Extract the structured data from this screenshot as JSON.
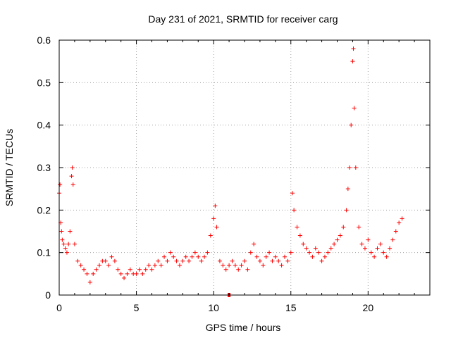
{
  "chart_data": {
    "type": "scatter",
    "title": "Day 231 of 2021, SRMTID for receiver carg",
    "xlabel": "GPS time / hours",
    "ylabel": "SRMTID / TECUs",
    "xlim": [
      0,
      24
    ],
    "ylim": [
      0,
      0.6
    ],
    "x_ticks": [
      0,
      5,
      10,
      15,
      20
    ],
    "x_tick_labels": [
      "0",
      "5",
      "10",
      "15",
      "20"
    ],
    "y_ticks": [
      0,
      0.1,
      0.2,
      0.3,
      0.4,
      0.5,
      0.6
    ],
    "y_tick_labels": [
      "0",
      "0.1",
      "0.2",
      "0.3",
      "0.4",
      "0.5",
      "0.6"
    ],
    "grid": true,
    "marker": "+",
    "color": "#ff0000",
    "series": [
      {
        "name": "SRMTID",
        "x": [
          0.0,
          0.05,
          0.1,
          0.15,
          0.2,
          0.3,
          0.4,
          0.5,
          0.6,
          0.7,
          0.8,
          0.85,
          0.9,
          1.0,
          1.2,
          1.4,
          1.6,
          1.8,
          2.0,
          2.2,
          2.4,
          2.6,
          2.8,
          3.0,
          3.2,
          3.4,
          3.6,
          3.8,
          4.0,
          4.2,
          4.4,
          4.6,
          4.8,
          5.0,
          5.2,
          5.4,
          5.6,
          5.8,
          6.0,
          6.2,
          6.4,
          6.6,
          6.8,
          7.0,
          7.2,
          7.4,
          7.6,
          7.8,
          8.0,
          8.2,
          8.4,
          8.6,
          8.8,
          9.0,
          9.2,
          9.4,
          9.6,
          9.8,
          10.0,
          10.1,
          10.2,
          10.4,
          10.6,
          10.8,
          11.0,
          11.2,
          11.4,
          11.6,
          11.8,
          12.0,
          12.2,
          12.4,
          12.6,
          12.8,
          13.0,
          13.2,
          13.4,
          13.6,
          13.8,
          14.0,
          14.2,
          14.4,
          14.6,
          14.8,
          15.0,
          15.1,
          15.2,
          15.4,
          15.6,
          15.8,
          16.0,
          16.2,
          16.4,
          16.6,
          16.8,
          17.0,
          17.2,
          17.4,
          17.6,
          17.8,
          18.0,
          18.2,
          18.4,
          18.6,
          18.7,
          18.8,
          18.9,
          19.0,
          19.05,
          19.1,
          19.2,
          19.4,
          19.6,
          19.8,
          20.0,
          20.2,
          20.4,
          20.6,
          20.8,
          21.0,
          21.2,
          21.4,
          21.6,
          21.8,
          22.0,
          22.2
        ],
        "y": [
          0.24,
          0.26,
          0.17,
          0.15,
          0.13,
          0.12,
          0.11,
          0.1,
          0.12,
          0.15,
          0.28,
          0.3,
          0.26,
          0.12,
          0.08,
          0.07,
          0.06,
          0.05,
          0.03,
          0.05,
          0.06,
          0.07,
          0.08,
          0.08,
          0.07,
          0.09,
          0.08,
          0.06,
          0.05,
          0.04,
          0.05,
          0.06,
          0.05,
          0.05,
          0.06,
          0.05,
          0.06,
          0.07,
          0.06,
          0.07,
          0.08,
          0.07,
          0.09,
          0.08,
          0.1,
          0.09,
          0.08,
          0.07,
          0.08,
          0.09,
          0.08,
          0.09,
          0.1,
          0.09,
          0.08,
          0.09,
          0.1,
          0.14,
          0.18,
          0.21,
          0.16,
          0.08,
          0.07,
          0.06,
          0.07,
          0.08,
          0.07,
          0.06,
          0.07,
          0.08,
          0.06,
          0.1,
          0.12,
          0.09,
          0.08,
          0.07,
          0.09,
          0.1,
          0.08,
          0.09,
          0.08,
          0.07,
          0.09,
          0.08,
          0.1,
          0.24,
          0.2,
          0.16,
          0.14,
          0.12,
          0.11,
          0.1,
          0.09,
          0.11,
          0.1,
          0.08,
          0.09,
          0.1,
          0.11,
          0.12,
          0.13,
          0.14,
          0.16,
          0.2,
          0.25,
          0.3,
          0.4,
          0.55,
          0.58,
          0.44,
          0.3,
          0.16,
          0.12,
          0.11,
          0.13,
          0.1,
          0.09,
          0.11,
          0.12,
          0.1,
          0.09,
          0.11,
          0.13,
          0.15,
          0.17,
          0.18
        ]
      }
    ]
  }
}
